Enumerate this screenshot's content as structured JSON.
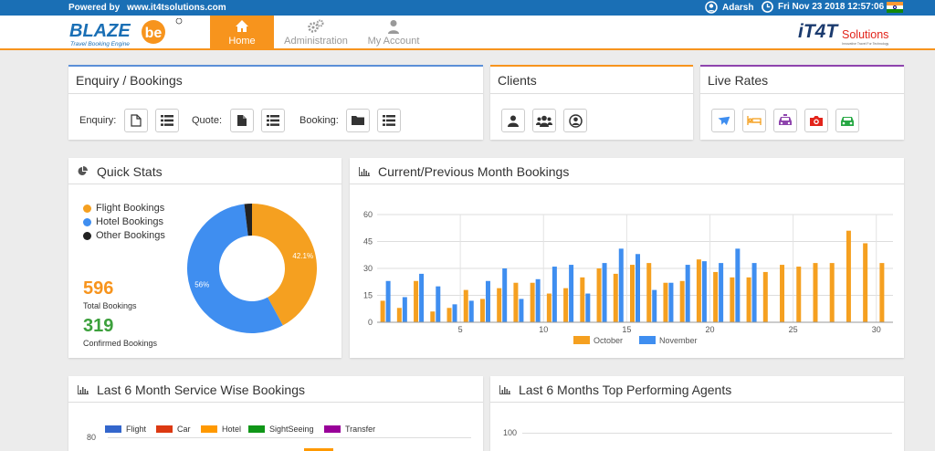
{
  "topbar": {
    "powered_by": "Powered by",
    "site": "www.it4tsolutions.com",
    "user": "Adarsh",
    "datetime": "Fri Nov 23 2018 12:57:06"
  },
  "brand": {
    "name": "BLAZE",
    "suffix": "be",
    "tagline": "Travel Booking Engine",
    "partner_name": "IT4T Solutions",
    "partner_tagline": "Innovative Travel For Technology"
  },
  "nav": [
    {
      "label": "Home",
      "icon": "home-icon"
    },
    {
      "label": "Administration",
      "icon": "gears-icon"
    },
    {
      "label": "My Account",
      "icon": "user-icon"
    }
  ],
  "panels": {
    "enquiry": {
      "title": "Enquiry / Bookings",
      "enquiry_label": "Enquiry:",
      "quote_label": "Quote:",
      "booking_label": "Booking:"
    },
    "clients": {
      "title": "Clients"
    },
    "live_rates": {
      "title": "Live Rates"
    },
    "quick_stats": {
      "title": "Quick Stats",
      "legend": [
        "Flight Bookings",
        "Hotel Bookings",
        "Other Bookings"
      ],
      "total": "596",
      "total_label": "Total Bookings",
      "confirmed": "319",
      "confirmed_label": "Confirmed Bookings"
    },
    "bookings_chart": {
      "title": "Current/Previous Month Bookings"
    },
    "service": {
      "title": "Last 6 Month Service Wise Bookings",
      "legend": [
        "Flight",
        "Car",
        "Hotel",
        "SightSeeing",
        "Transfer"
      ],
      "tick": "80"
    },
    "agents": {
      "title": "Last 6 Months Top Performing Agents",
      "tick": "100"
    }
  },
  "colors": {
    "accent": "#f7941d",
    "blue": "#3f8ef0",
    "orange": "#f5a020",
    "topbar": "#1a6fb5",
    "flight": "#3366cc",
    "car": "#dc3912",
    "hotel": "#ff9900",
    "sightseeing": "#109618",
    "transfer": "#990099",
    "enquiry_border": "#5b8fd8",
    "clients_border": "#f7941d",
    "live_border": "#8e44ad"
  },
  "chart_data": [
    {
      "type": "pie",
      "subtype": "donut",
      "labels": [
        "Flight Bookings",
        "Hotel Bookings",
        "Other Bookings"
      ],
      "values": [
        42.1,
        56,
        1.9
      ],
      "value_labels": [
        "42.1%",
        "56%",
        ""
      ]
    },
    {
      "type": "bar",
      "title": "Current/Previous Month Bookings",
      "x": [
        1,
        2,
        3,
        4,
        5,
        6,
        7,
        8,
        9,
        10,
        11,
        12,
        13,
        14,
        15,
        16,
        17,
        18,
        19,
        20,
        21,
        22,
        23,
        24,
        25,
        26,
        27,
        28,
        29,
        30,
        31
      ],
      "x_ticks": [
        "5",
        "10",
        "15",
        "20",
        "25",
        "30"
      ],
      "ylim": [
        0,
        60
      ],
      "y_ticks": [
        "0",
        "15",
        "30",
        "45",
        "60"
      ],
      "series": [
        {
          "name": "October",
          "values": [
            12,
            8,
            23,
            6,
            8,
            18,
            13,
            19,
            22,
            22,
            16,
            19,
            25,
            30,
            27,
            32,
            33,
            22,
            23,
            35,
            28,
            25,
            25,
            28,
            32,
            31,
            33,
            33,
            51,
            44,
            33
          ]
        },
        {
          "name": "November",
          "values": [
            23,
            14,
            27,
            20,
            10,
            12,
            23,
            30,
            13,
            24,
            31,
            32,
            16,
            33,
            41,
            38,
            18,
            22,
            32,
            34,
            33,
            41,
            33,
            null,
            null,
            null,
            null,
            null,
            null,
            null,
            null
          ]
        }
      ]
    }
  ]
}
